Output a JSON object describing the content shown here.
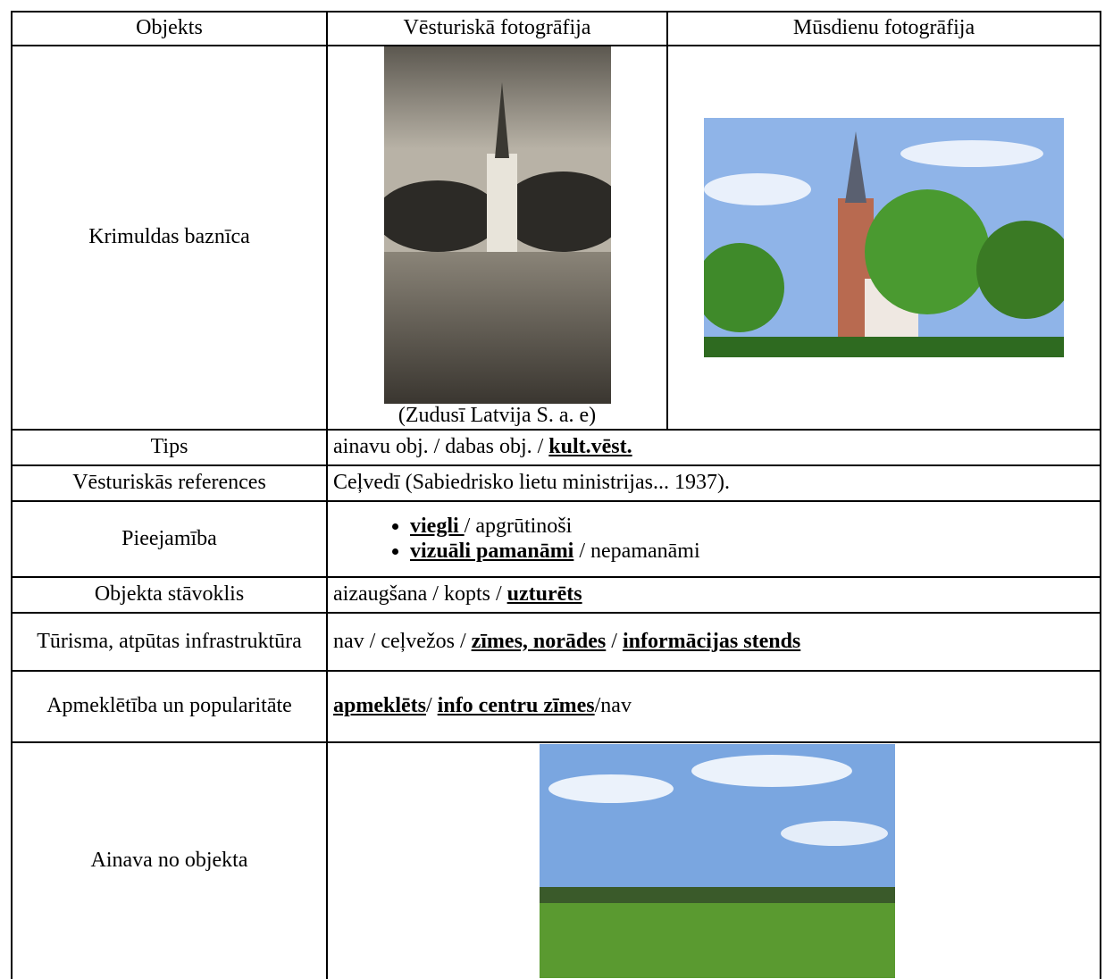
{
  "table": {
    "header": [
      "Objekts",
      "Vēsturiskā fotogrāfija",
      "Mūsdienu fotogrāfija"
    ],
    "object": "Krimuldas baznīca",
    "historic_caption": "(Zudusī Latvija S. a. e)",
    "rows": [
      {
        "label": "Tips",
        "segments": [
          {
            "text": "ainavu obj. / dabas obj. / ",
            "emph": false
          },
          {
            "text": "kult.vēst.",
            "emph": true
          }
        ]
      },
      {
        "label": "Vēsturiskās references",
        "segments": [
          {
            "text": "Ceļvedī (Sabiedrisko lietu ministrijas... 1937).",
            "emph": false
          }
        ]
      },
      {
        "label": "Pieejamība",
        "items": [
          [
            {
              "text": "viegli ",
              "emph": true
            },
            {
              "text": "/ apgrūtinoši",
              "emph": false
            }
          ],
          [
            {
              "text": "vizuāli pamanāmi",
              "emph": true
            },
            {
              "text": " / nepamanāmi",
              "emph": false
            }
          ]
        ]
      },
      {
        "label": "Objekta stāvoklis",
        "segments": [
          {
            "text": "aizaugšana / kopts / ",
            "emph": false
          },
          {
            "text": "uzturēts",
            "emph": true
          }
        ]
      },
      {
        "label": "Tūrisma, atpūtas infrastruktūra",
        "segments": [
          {
            "text": "nav / ceļvežos / ",
            "emph": false
          },
          {
            "text": "zīmes, norādes",
            "emph": true
          },
          {
            "text": " / ",
            "emph": false
          },
          {
            "text": "informācijas stends",
            "emph": true
          }
        ]
      },
      {
        "label": "Apmeklētība un popularitāte",
        "segments": [
          {
            "text": "apmeklēts",
            "emph": true
          },
          {
            "text": "/ ",
            "emph": false
          },
          {
            "text": "info centru zīmes",
            "emph": true
          },
          {
            "text": "/nav",
            "emph": false
          }
        ]
      }
    ],
    "landscape_label": "Ainava no objekta"
  }
}
